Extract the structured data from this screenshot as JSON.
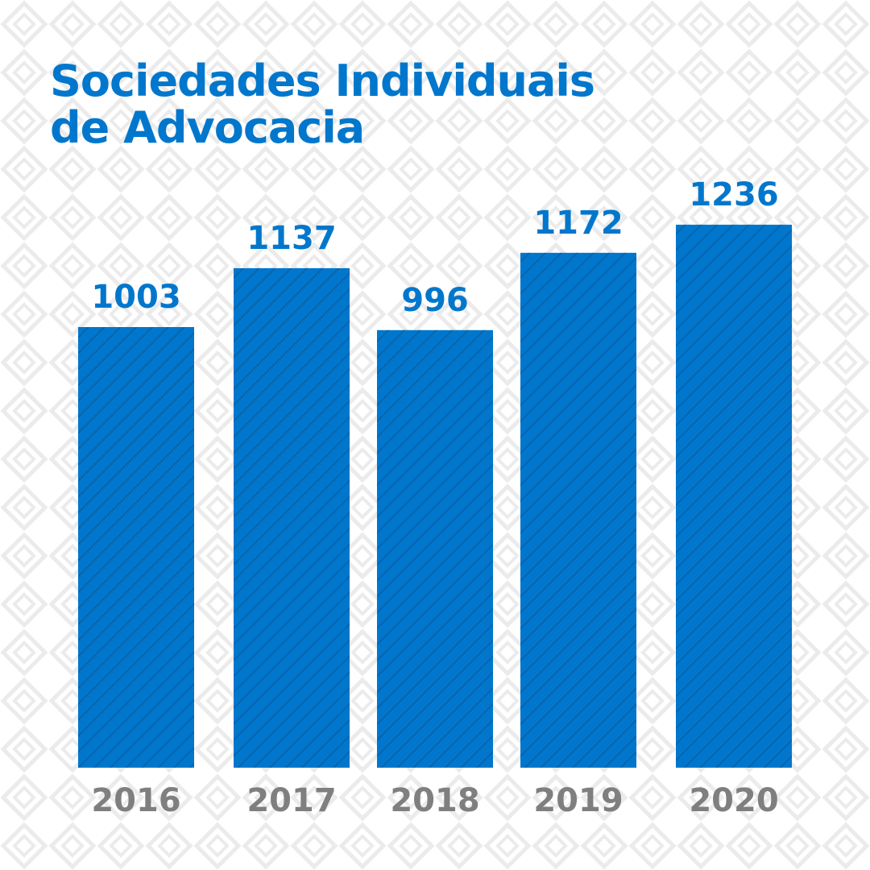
{
  "header": {
    "title_line1": "Sociedades Individuais",
    "title_line2": "de Advocacia"
  },
  "colors": {
    "bar": "#0077CC",
    "bar_hatch": "#0B5FA3",
    "value_label": "#0077CC",
    "year_label": "#7F7F7F",
    "background_pattern": "#EBEBEB"
  },
  "chart_data": {
    "type": "bar",
    "title": "Sociedades Individuais de Advocacia",
    "categories": [
      "2016",
      "2017",
      "2018",
      "2019",
      "2020"
    ],
    "values": [
      1003,
      1137,
      996,
      1172,
      1236
    ],
    "xlabel": "",
    "ylabel": "",
    "grid": false,
    "legend": "none"
  }
}
